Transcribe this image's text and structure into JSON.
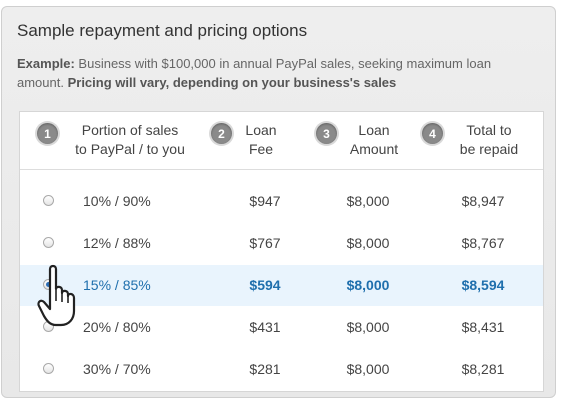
{
  "title": "Sample repayment and pricing options",
  "example": {
    "label": "Example:",
    "text": " Business with $100,000 in annual PayPal sales, seeking maximum loan amount. ",
    "emphasis": "Pricing will vary, depending on your business's sales"
  },
  "headers": [
    {
      "num": "1",
      "label": "Portion of sales\nto PayPal / to you"
    },
    {
      "num": "2",
      "label": "Loan\nFee"
    },
    {
      "num": "3",
      "label": "Loan\nAmount"
    },
    {
      "num": "4",
      "label": "Total to\nbe repaid"
    }
  ],
  "rows": [
    {
      "split": "10%  /  90%",
      "fee": "$947",
      "amount": "$8,000",
      "total": "$8,947",
      "selected": false
    },
    {
      "split": "12%  /  88%",
      "fee": "$767",
      "amount": "$8,000",
      "total": "$8,767",
      "selected": false
    },
    {
      "split": "15%  /  85%",
      "fee": "$594",
      "amount": "$8,000",
      "total": "$8,594",
      "selected": true
    },
    {
      "split": "20%  /  80%",
      "fee": "$431",
      "amount": "$8,000",
      "total": "$8,431",
      "selected": false
    },
    {
      "split": "30%  /  70%",
      "fee": "$281",
      "amount": "$8,000",
      "total": "$8,281",
      "selected": false
    }
  ],
  "colors": {
    "accent": "#1f6fad",
    "selected_row": "#e9f4fd"
  },
  "icons": {
    "cursor": "hand-pointer-icon"
  }
}
